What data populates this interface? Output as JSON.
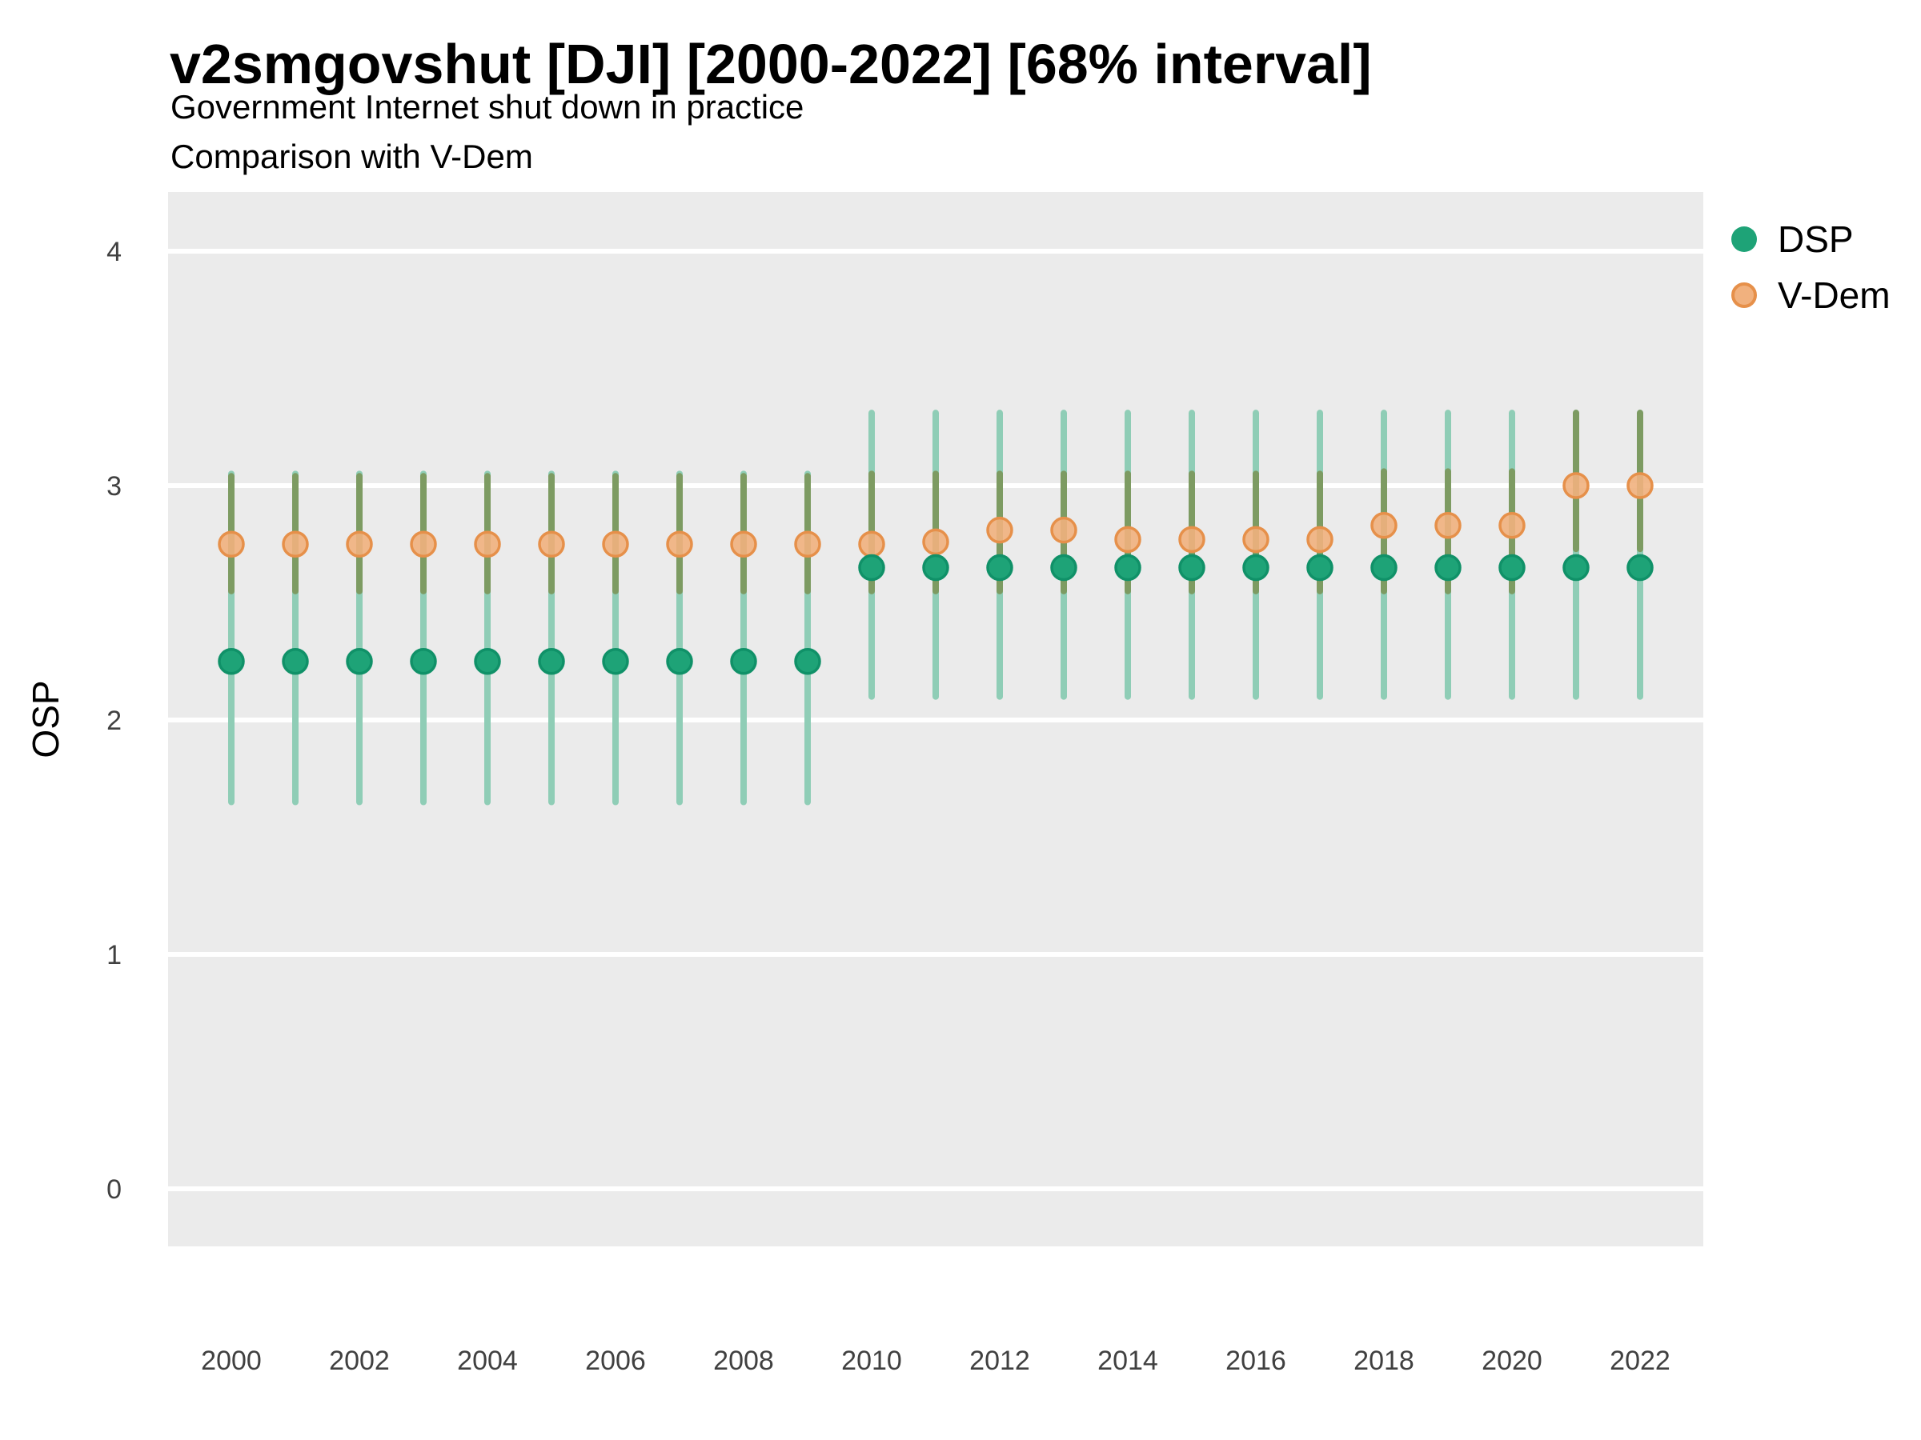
{
  "chart_data": {
    "type": "pointrange",
    "title": "v2smgovshut [DJI] [2000-2022] [68% interval]",
    "subtitle_line1": "Government Internet shut down in practice",
    "subtitle_line2": "Comparison with V-Dem",
    "xlabel": "",
    "ylabel": "OSP",
    "ylim": [
      -0.25,
      4.25
    ],
    "yticks": [
      0,
      1,
      2,
      3,
      4
    ],
    "xticks": [
      2000,
      2002,
      2004,
      2006,
      2008,
      2010,
      2012,
      2014,
      2016,
      2018,
      2020,
      2022
    ],
    "grid": "on",
    "legend_position": "right-top",
    "legend": [
      {
        "name": "DSP",
        "point_color": "#1ea377",
        "point_stroke": "#109168",
        "bar_color": "#8fcdb6"
      },
      {
        "name": "V-Dem",
        "point_color": "#f1b17e",
        "point_stroke": "#e6904a",
        "bar_color": "#7d9b62"
      }
    ],
    "years": [
      2000,
      2001,
      2002,
      2003,
      2004,
      2005,
      2006,
      2007,
      2008,
      2009,
      2010,
      2011,
      2012,
      2013,
      2014,
      2015,
      2016,
      2017,
      2018,
      2019,
      2020,
      2021,
      2022
    ],
    "series": [
      {
        "name": "DSP",
        "points": [
          {
            "year": 2000,
            "est": 2.25,
            "lo": 1.65,
            "hi": 3.05
          },
          {
            "year": 2001,
            "est": 2.25,
            "lo": 1.65,
            "hi": 3.05
          },
          {
            "year": 2002,
            "est": 2.25,
            "lo": 1.65,
            "hi": 3.05
          },
          {
            "year": 2003,
            "est": 2.25,
            "lo": 1.65,
            "hi": 3.05
          },
          {
            "year": 2004,
            "est": 2.25,
            "lo": 1.65,
            "hi": 3.05
          },
          {
            "year": 2005,
            "est": 2.25,
            "lo": 1.65,
            "hi": 3.05
          },
          {
            "year": 2006,
            "est": 2.25,
            "lo": 1.65,
            "hi": 3.05
          },
          {
            "year": 2007,
            "est": 2.25,
            "lo": 1.65,
            "hi": 3.05
          },
          {
            "year": 2008,
            "est": 2.25,
            "lo": 1.65,
            "hi": 3.05
          },
          {
            "year": 2009,
            "est": 2.25,
            "lo": 1.65,
            "hi": 3.05
          },
          {
            "year": 2010,
            "est": 2.65,
            "lo": 2.1,
            "hi": 3.31
          },
          {
            "year": 2011,
            "est": 2.65,
            "lo": 2.1,
            "hi": 3.31
          },
          {
            "year": 2012,
            "est": 2.65,
            "lo": 2.1,
            "hi": 3.31
          },
          {
            "year": 2013,
            "est": 2.65,
            "lo": 2.1,
            "hi": 3.31
          },
          {
            "year": 2014,
            "est": 2.65,
            "lo": 2.1,
            "hi": 3.31
          },
          {
            "year": 2015,
            "est": 2.65,
            "lo": 2.1,
            "hi": 3.31
          },
          {
            "year": 2016,
            "est": 2.65,
            "lo": 2.1,
            "hi": 3.31
          },
          {
            "year": 2017,
            "est": 2.65,
            "lo": 2.1,
            "hi": 3.31
          },
          {
            "year": 2018,
            "est": 2.65,
            "lo": 2.1,
            "hi": 3.31
          },
          {
            "year": 2019,
            "est": 2.65,
            "lo": 2.1,
            "hi": 3.31
          },
          {
            "year": 2020,
            "est": 2.65,
            "lo": 2.1,
            "hi": 3.31
          },
          {
            "year": 2021,
            "est": 2.65,
            "lo": 2.1,
            "hi": 3.31
          },
          {
            "year": 2022,
            "est": 2.65,
            "lo": 2.1,
            "hi": 3.31
          }
        ]
      },
      {
        "name": "V-Dem",
        "points": [
          {
            "year": 2000,
            "est": 2.75,
            "lo": 2.55,
            "hi": 3.04
          },
          {
            "year": 2001,
            "est": 2.75,
            "lo": 2.55,
            "hi": 3.04
          },
          {
            "year": 2002,
            "est": 2.75,
            "lo": 2.55,
            "hi": 3.04
          },
          {
            "year": 2003,
            "est": 2.75,
            "lo": 2.55,
            "hi": 3.04
          },
          {
            "year": 2004,
            "est": 2.75,
            "lo": 2.55,
            "hi": 3.04
          },
          {
            "year": 2005,
            "est": 2.75,
            "lo": 2.55,
            "hi": 3.04
          },
          {
            "year": 2006,
            "est": 2.75,
            "lo": 2.55,
            "hi": 3.04
          },
          {
            "year": 2007,
            "est": 2.75,
            "lo": 2.55,
            "hi": 3.04
          },
          {
            "year": 2008,
            "est": 2.75,
            "lo": 2.55,
            "hi": 3.04
          },
          {
            "year": 2009,
            "est": 2.75,
            "lo": 2.55,
            "hi": 3.04
          },
          {
            "year": 2010,
            "est": 2.75,
            "lo": 2.55,
            "hi": 3.05
          },
          {
            "year": 2011,
            "est": 2.76,
            "lo": 2.55,
            "hi": 3.05
          },
          {
            "year": 2012,
            "est": 2.81,
            "lo": 2.55,
            "hi": 3.05
          },
          {
            "year": 2013,
            "est": 2.81,
            "lo": 2.55,
            "hi": 3.05
          },
          {
            "year": 2014,
            "est": 2.77,
            "lo": 2.55,
            "hi": 3.05
          },
          {
            "year": 2015,
            "est": 2.77,
            "lo": 2.55,
            "hi": 3.05
          },
          {
            "year": 2016,
            "est": 2.77,
            "lo": 2.55,
            "hi": 3.05
          },
          {
            "year": 2017,
            "est": 2.77,
            "lo": 2.55,
            "hi": 3.05
          },
          {
            "year": 2018,
            "est": 2.83,
            "lo": 2.55,
            "hi": 3.06
          },
          {
            "year": 2019,
            "est": 2.83,
            "lo": 2.55,
            "hi": 3.06
          },
          {
            "year": 2020,
            "est": 2.83,
            "lo": 2.55,
            "hi": 3.06
          },
          {
            "year": 2021,
            "est": 3.0,
            "lo": 2.73,
            "hi": 3.31
          },
          {
            "year": 2022,
            "est": 3.0,
            "lo": 2.73,
            "hi": 3.31
          }
        ]
      }
    ],
    "colors": {
      "panel_background": "#ebebeb",
      "gridline": "#ffffff",
      "tick_label": "#404040",
      "dsp_point_fill": "#1ea377",
      "dsp_point_stroke": "#109168",
      "dsp_bar": "#8fcdb6",
      "vdem_point_fill": "#f1b17e",
      "vdem_point_stroke": "#e6904a",
      "vdem_bar_overlap": "#7d9b62"
    }
  }
}
